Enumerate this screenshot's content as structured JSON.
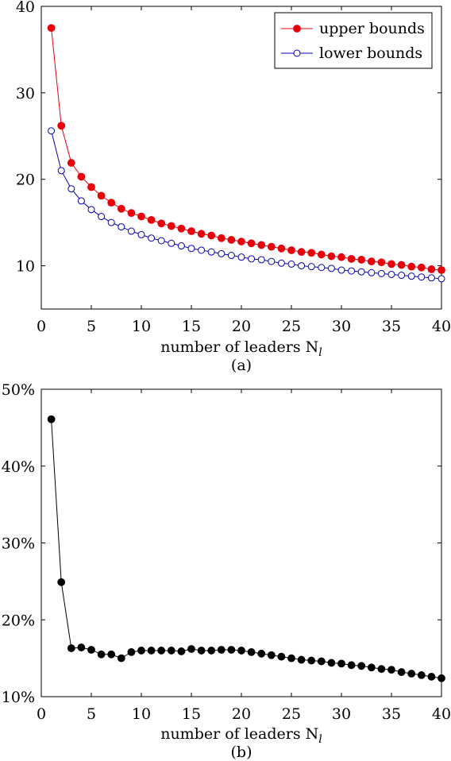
{
  "chart_data": [
    {
      "type": "line",
      "caption": "(a)",
      "xlabel": "number of leaders N",
      "xlabel_sub": "l",
      "ylabel": "",
      "xlim": [
        0,
        40
      ],
      "ylim": [
        5,
        40
      ],
      "xticks": [
        0,
        5,
        10,
        15,
        20,
        25,
        30,
        35,
        40
      ],
      "yticks": [
        10,
        20,
        30,
        40
      ],
      "ytick_labels": [
        "10",
        "20",
        "30",
        "40"
      ],
      "legend_position": "top-right",
      "grid": false,
      "x": [
        1,
        2,
        3,
        4,
        5,
        6,
        7,
        8,
        9,
        10,
        11,
        12,
        13,
        14,
        15,
        16,
        17,
        18,
        19,
        20,
        21,
        22,
        23,
        24,
        25,
        26,
        27,
        28,
        29,
        30,
        31,
        32,
        33,
        34,
        35,
        36,
        37,
        38,
        39,
        40
      ],
      "series": [
        {
          "name": "upper bounds",
          "color": "#e8000b",
          "marker": "filled-circle",
          "values": [
            37.5,
            26.2,
            21.9,
            20.3,
            19.1,
            18.1,
            17.3,
            16.6,
            16.1,
            15.7,
            15.3,
            14.9,
            14.6,
            14.3,
            14.0,
            13.7,
            13.5,
            13.2,
            13.0,
            12.8,
            12.6,
            12.4,
            12.2,
            12.0,
            11.8,
            11.6,
            11.5,
            11.3,
            11.1,
            11.0,
            10.8,
            10.7,
            10.5,
            10.4,
            10.2,
            10.1,
            9.9,
            9.8,
            9.6,
            9.5
          ]
        },
        {
          "name": "lower bounds",
          "color": "#0000b4",
          "marker": "open-circle",
          "values": [
            25.6,
            21.0,
            18.9,
            17.5,
            16.5,
            15.7,
            15.0,
            14.5,
            14.0,
            13.6,
            13.2,
            12.9,
            12.6,
            12.3,
            12.0,
            11.8,
            11.6,
            11.4,
            11.2,
            11.0,
            10.8,
            10.7,
            10.5,
            10.3,
            10.2,
            10.0,
            9.9,
            9.8,
            9.7,
            9.5,
            9.4,
            9.3,
            9.2,
            9.1,
            9.0,
            8.9,
            8.8,
            8.7,
            8.6,
            8.5
          ]
        }
      ]
    },
    {
      "type": "line",
      "caption": "(b)",
      "xlabel": "number of leaders N",
      "xlabel_sub": "l",
      "ylabel": "",
      "xlim": [
        0,
        40
      ],
      "ylim": [
        10,
        50
      ],
      "xticks": [
        0,
        5,
        10,
        15,
        20,
        25,
        30,
        35,
        40
      ],
      "yticks": [
        10,
        20,
        30,
        40,
        50
      ],
      "ytick_labels": [
        "10%",
        "20%",
        "30%",
        "40%",
        "50%"
      ],
      "grid": false,
      "x": [
        1,
        2,
        3,
        4,
        5,
        6,
        7,
        8,
        9,
        10,
        11,
        12,
        13,
        14,
        15,
        16,
        17,
        18,
        19,
        20,
        21,
        22,
        23,
        24,
        25,
        26,
        27,
        28,
        29,
        30,
        31,
        32,
        33,
        34,
        35,
        36,
        37,
        38,
        39,
        40
      ],
      "series": [
        {
          "color": "#000000",
          "marker": "filled-circle",
          "values": [
            46.1,
            24.9,
            16.3,
            16.4,
            16.1,
            15.5,
            15.5,
            15.0,
            15.8,
            16.0,
            16.0,
            16.0,
            16.0,
            15.9,
            16.2,
            16.0,
            16.0,
            16.1,
            16.1,
            16.0,
            15.8,
            15.6,
            15.4,
            15.2,
            15.0,
            14.8,
            14.7,
            14.6,
            14.4,
            14.3,
            14.1,
            14.0,
            13.8,
            13.6,
            13.5,
            13.2,
            13.0,
            12.8,
            12.6,
            12.4
          ]
        }
      ]
    }
  ]
}
